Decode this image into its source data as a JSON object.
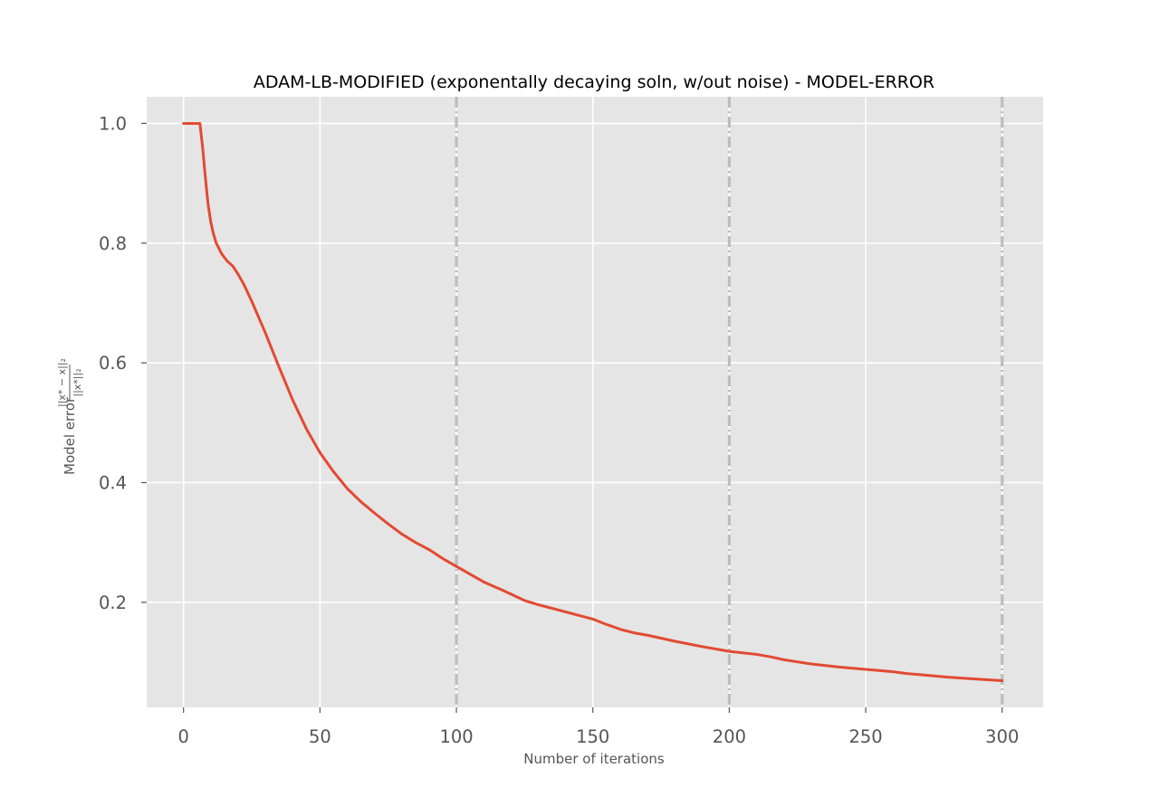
{
  "chart_data": {
    "type": "line",
    "title": "ADAM-LB-MODIFIED (exponentally decaying soln, w/out noise) - MODEL-ERROR",
    "xlabel": "Number of iterations",
    "ylabel_prefix": "Model error",
    "ylabel_fraction": {
      "numerator": "||x* − x||₂",
      "denominator": "||x*||₂"
    },
    "xlim": [
      -13.5,
      315
    ],
    "ylim": [
      0.0245,
      1.0445
    ],
    "xticks": [
      0,
      50,
      100,
      150,
      200,
      250,
      300
    ],
    "xtick_labels": [
      "0",
      "50",
      "100",
      "150",
      "200",
      "250",
      "300"
    ],
    "yticks": [
      0.2,
      0.4,
      0.6,
      0.8,
      1.0
    ],
    "ytick_labels": [
      "0.2",
      "0.4",
      "0.6",
      "0.8",
      "1.0"
    ],
    "grid": true,
    "vlines": [
      100,
      200,
      300
    ],
    "colors": {
      "line": "#E24A33",
      "axes_bg": "#E5E5E5",
      "grid": "#FFFFFF",
      "vline": "#BDBDBD"
    },
    "series": [
      {
        "x": [
          0,
          3,
          6,
          7,
          8,
          9,
          10,
          11,
          12,
          14,
          16,
          18,
          20,
          22,
          25,
          30,
          35,
          40,
          45,
          50,
          55,
          60,
          65,
          70,
          75,
          80,
          85,
          90,
          95,
          100,
          110,
          117,
          125,
          130,
          140,
          150,
          155,
          160,
          165,
          170,
          180,
          190,
          200,
          210,
          215,
          220,
          230,
          240,
          250,
          260,
          265,
          270,
          280,
          290,
          300
        ],
        "y": [
          1.0,
          1.0,
          1.0,
          0.96,
          0.91,
          0.865,
          0.835,
          0.815,
          0.8,
          0.782,
          0.77,
          0.762,
          0.748,
          0.732,
          0.703,
          0.65,
          0.593,
          0.538,
          0.49,
          0.45,
          0.418,
          0.39,
          0.368,
          0.349,
          0.331,
          0.314,
          0.3,
          0.288,
          0.273,
          0.26,
          0.234,
          0.22,
          0.203,
          0.196,
          0.184,
          0.172,
          0.163,
          0.155,
          0.149,
          0.145,
          0.135,
          0.126,
          0.118,
          0.113,
          0.109,
          0.104,
          0.097,
          0.092,
          0.088,
          0.084,
          0.081,
          0.079,
          0.075,
          0.072,
          0.069
        ]
      }
    ]
  }
}
